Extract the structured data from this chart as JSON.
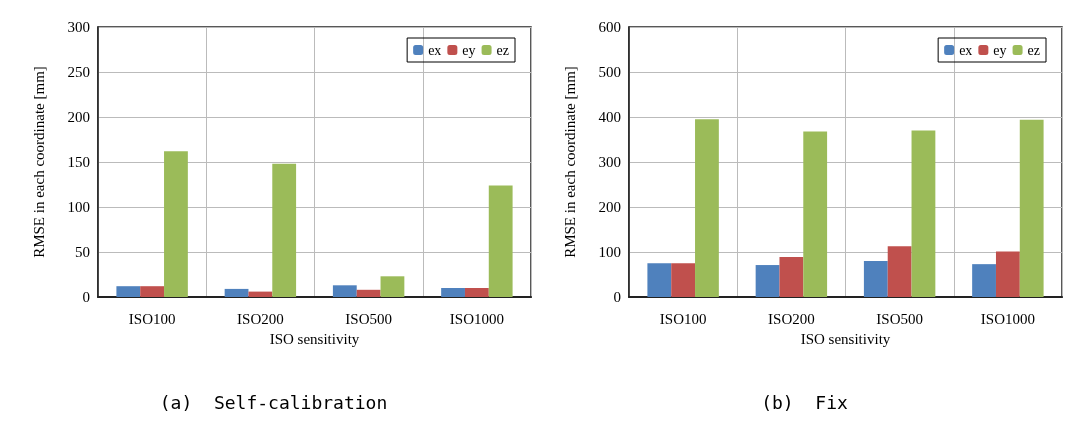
{
  "chart_data": [
    {
      "type": "bar",
      "categories": [
        "ISO100",
        "ISO200",
        "ISO500",
        "ISO1000"
      ],
      "xlabel": "ISO sensitivity",
      "ylabel": "RMSE in each coordinate [mm]",
      "ylim": [
        0,
        300
      ],
      "yticks": [
        0,
        50,
        100,
        150,
        200,
        250,
        300
      ],
      "grid": true,
      "legend": "top right",
      "annotations": [
        "(a)  Self-calibration"
      ],
      "series": [
        {
          "name": "ex",
          "color": "#4f81bd",
          "values": [
            12,
            9,
            13,
            10
          ]
        },
        {
          "name": "ey",
          "color": "#c0504d",
          "values": [
            12,
            6,
            8,
            10
          ]
        },
        {
          "name": "ez",
          "color": "#9bbb59",
          "values": [
            162,
            148,
            23,
            124
          ]
        }
      ]
    },
    {
      "type": "bar",
      "categories": [
        "ISO100",
        "ISO200",
        "ISO500",
        "ISO1000"
      ],
      "xlabel": "ISO sensitivity",
      "ylabel": "RMSE in each coordinate [mm]",
      "ylim": [
        0,
        600
      ],
      "yticks": [
        0,
        100,
        200,
        300,
        400,
        500,
        600
      ],
      "grid": true,
      "legend": "top right",
      "annotations": [
        "(b)  Fix"
      ],
      "series": [
        {
          "name": "ex",
          "color": "#4f81bd",
          "values": [
            75,
            71,
            80,
            73
          ]
        },
        {
          "name": "ey",
          "color": "#c0504d",
          "values": [
            75,
            89,
            113,
            101
          ]
        },
        {
          "name": "ez",
          "color": "#9bbb59",
          "values": [
            395,
            368,
            370,
            394
          ]
        }
      ]
    }
  ]
}
